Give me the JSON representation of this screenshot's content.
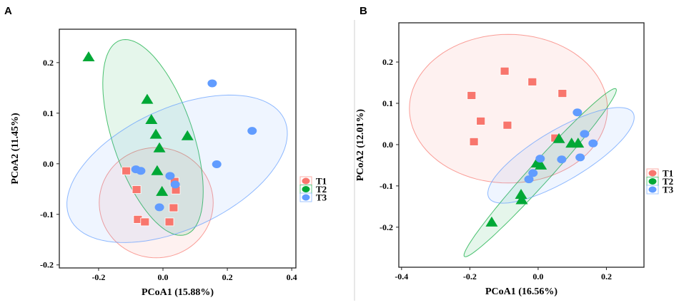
{
  "colors": {
    "T1": "#F8766D",
    "T2": "#00A836",
    "T3": "#619CFF"
  },
  "chart_data": [
    {
      "panel": "A",
      "type": "scatter",
      "xlabel": "PCoA1 (15.88%)",
      "ylabel": "PCoA2 (11.45%)",
      "xlim": [
        -0.322,
        0.413
      ],
      "ylim": [
        -0.206,
        0.266
      ],
      "xticks": [
        "-0.2",
        "0.0",
        "0.2",
        "0.4"
      ],
      "yticks": [
        "0.2",
        "0.1",
        "0.0",
        "-0.1",
        "-0.2"
      ],
      "legend": [
        "T1",
        "T2",
        "T3"
      ],
      "legend_position": "right",
      "series": [
        {
          "name": "T1",
          "marker": "square",
          "points": [
            [
              -0.114,
              -0.014
            ],
            [
              0.036,
              -0.035
            ],
            [
              0.04,
              -0.052
            ],
            [
              -0.082,
              -0.051
            ],
            [
              0.033,
              -0.087
            ],
            [
              -0.078,
              -0.11
            ],
            [
              -0.056,
              -0.115
            ],
            [
              0.02,
              -0.115
            ]
          ],
          "ellipse": {
            "center": [
              -0.021,
              -0.077
            ],
            "u": [
              0.177,
              0.0
            ],
            "v": [
              0.0,
              0.109
            ]
          }
        },
        {
          "name": "T2",
          "marker": "triangle",
          "points": [
            [
              -0.231,
              0.211
            ],
            [
              -0.049,
              0.127
            ],
            [
              -0.036,
              0.087
            ],
            [
              -0.022,
              0.058
            ],
            [
              0.076,
              0.055
            ],
            [
              -0.011,
              0.031
            ],
            [
              -0.018,
              -0.014
            ],
            [
              -0.003,
              -0.055
            ]
          ],
          "ellipse": {
            "center": [
              -0.031,
              0.052
            ],
            "u": [
              -0.102,
              0.192
            ],
            "v": [
              0.118,
              0.025
            ]
          }
        },
        {
          "name": "T3",
          "marker": "circle",
          "points": [
            [
              0.153,
              0.159
            ],
            [
              0.277,
              0.065
            ],
            [
              0.167,
              -0.001
            ],
            [
              -0.084,
              -0.011
            ],
            [
              -0.069,
              -0.014
            ],
            [
              0.022,
              -0.024
            ],
            [
              0.038,
              -0.041
            ],
            [
              -0.011,
              -0.086
            ]
          ],
          "ellipse": {
            "center": [
              0.044,
              -0.01
            ],
            "u": [
              0.333,
              0.098
            ],
            "v": [
              0.08,
              -0.108
            ]
          }
        }
      ]
    },
    {
      "panel": "B",
      "type": "scatter",
      "xlabel": "PCoA1 (16.56%)",
      "ylabel": "PCoA2 (12.01%)",
      "xlim": [
        -0.408,
        0.31
      ],
      "ylim": [
        -0.297,
        0.295
      ],
      "xticks": [
        "-0.4",
        "-0.2",
        "0.0",
        "0.2"
      ],
      "yticks": [
        "0.2",
        "0.1",
        "0.0",
        "-0.1",
        "-0.2"
      ],
      "legend": [
        "T1",
        "T2",
        "T3"
      ],
      "legend_position": "right",
      "series": [
        {
          "name": "T1",
          "marker": "square",
          "points": [
            [
              -0.098,
              0.178
            ],
            [
              -0.017,
              0.152
            ],
            [
              0.071,
              0.124
            ],
            [
              -0.195,
              0.119
            ],
            [
              -0.168,
              0.057
            ],
            [
              -0.09,
              0.047
            ],
            [
              -0.188,
              0.007
            ],
            [
              0.05,
              0.016
            ]
          ],
          "ellipse": {
            "center": [
              -0.087,
              0.087
            ],
            "u": [
              0.29,
              0.0
            ],
            "v": [
              0.0,
              0.18
            ]
          }
        },
        {
          "name": "T2",
          "marker": "triangle",
          "points": [
            [
              0.061,
              0.014
            ],
            [
              0.098,
              0.003
            ],
            [
              0.117,
              0.003
            ],
            [
              -0.004,
              -0.045
            ],
            [
              0.008,
              -0.05
            ],
            [
              -0.05,
              -0.121
            ],
            [
              -0.048,
              -0.134
            ],
            [
              -0.136,
              -0.188
            ]
          ],
          "ellipse": {
            "center": [
              0.006,
              -0.068
            ],
            "u": [
              0.222,
              0.203
            ],
            "v": [
              0.023,
              -0.017
            ]
          }
        },
        {
          "name": "T3",
          "marker": "circle",
          "points": [
            [
              0.115,
              0.078
            ],
            [
              0.136,
              0.026
            ],
            [
              0.161,
              0.003
            ],
            [
              0.006,
              -0.034
            ],
            [
              0.069,
              -0.036
            ],
            [
              0.123,
              -0.031
            ],
            [
              -0.015,
              -0.069
            ],
            [
              -0.027,
              -0.084
            ]
          ],
          "ellipse": {
            "center": [
              0.067,
              -0.026
            ],
            "u": [
              0.211,
              0.103
            ],
            "v": [
              0.038,
              -0.053
            ]
          }
        }
      ]
    }
  ]
}
